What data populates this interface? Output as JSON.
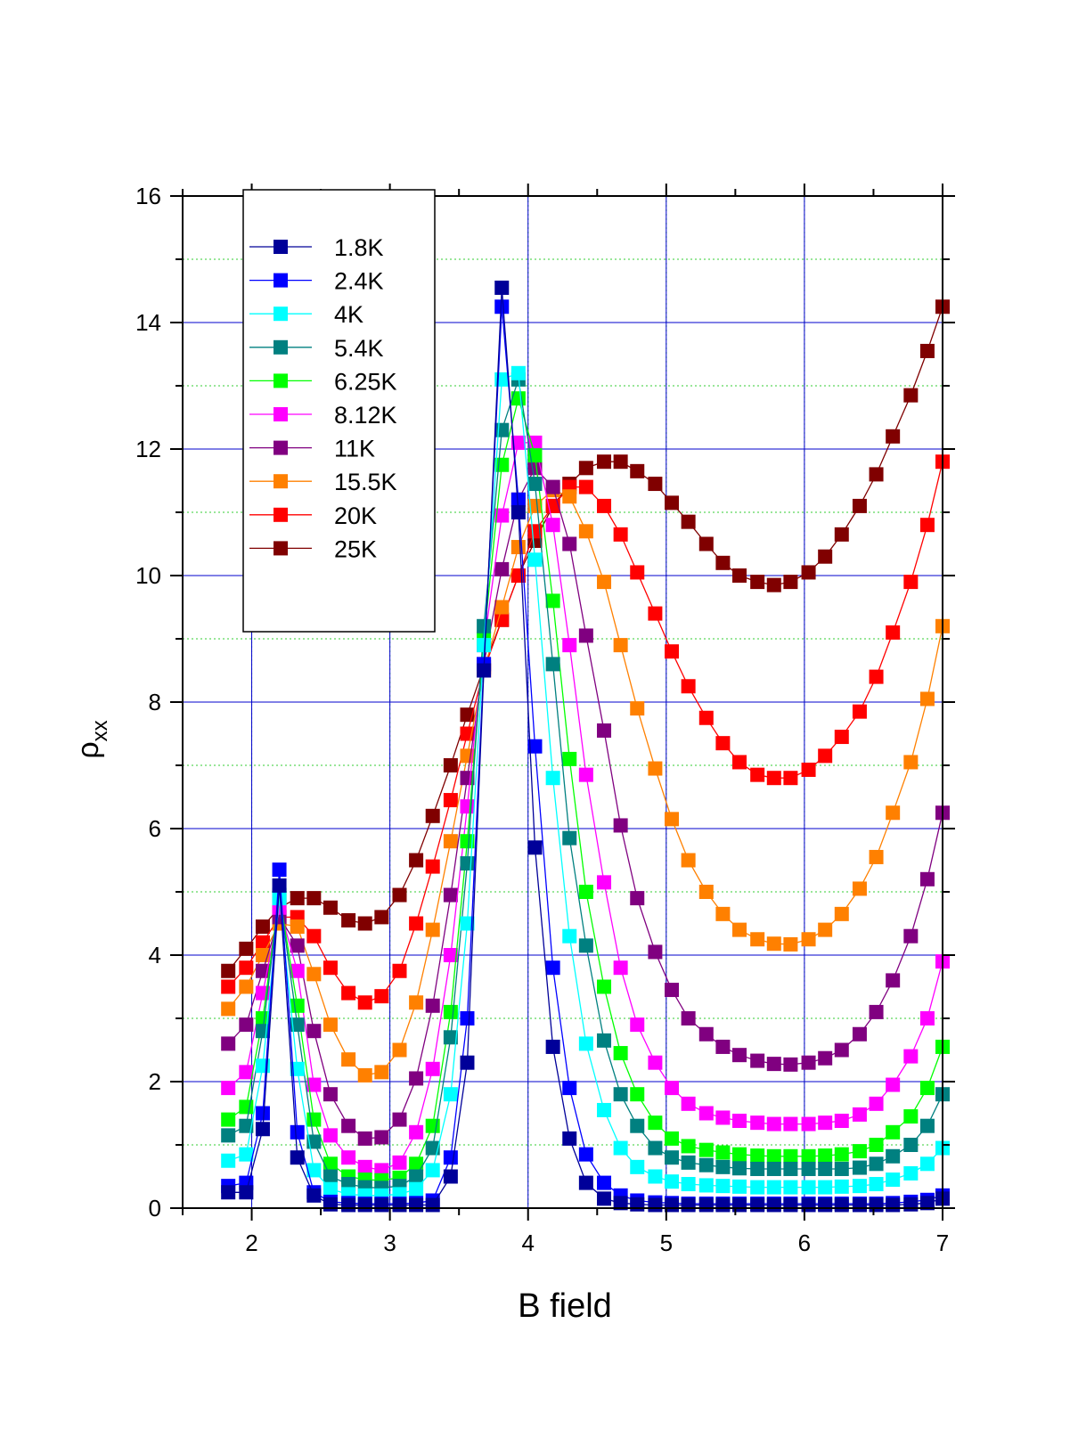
{
  "chart_data": {
    "type": "line",
    "xlabel": "B field",
    "ylabel_base": "ρ",
    "ylabel_sub": "xx",
    "xlim": [
      1.5,
      7
    ],
    "ylim": [
      0,
      16
    ],
    "xticks": [
      2,
      3,
      4,
      5,
      6,
      7
    ],
    "yticks": [
      0,
      2,
      4,
      6,
      8,
      10,
      12,
      14,
      16
    ],
    "grid": true,
    "legend_position": "top-left",
    "colors": {
      "grid_major": "#0000cc",
      "grid_minor": "#33cc33",
      "axis": "#000000"
    },
    "series": [
      {
        "name": "1.8K",
        "color": "#000099",
        "x": [
          1.83,
          1.96,
          2.08,
          2.2,
          2.33,
          2.45,
          2.57,
          2.7,
          2.82,
          2.94,
          3.07,
          3.19,
          3.31,
          3.44,
          3.56,
          3.68,
          3.81,
          3.93,
          4.05,
          4.18,
          4.3,
          4.42,
          4.55,
          4.67,
          4.79,
          4.92,
          5.04,
          5.16,
          5.29,
          5.41,
          5.53,
          5.66,
          5.78,
          5.9,
          6.03,
          6.15,
          6.27,
          6.4,
          6.52,
          6.64,
          6.77,
          6.89,
          7.0
        ],
        "y": [
          0.25,
          0.25,
          1.25,
          5.1,
          0.8,
          0.2,
          0.06,
          0.05,
          0.05,
          0.05,
          0.05,
          0.05,
          0.05,
          0.5,
          2.3,
          8.5,
          14.55,
          11.0,
          5.7,
          2.55,
          1.1,
          0.4,
          0.15,
          0.08,
          0.06,
          0.05,
          0.05,
          0.05,
          0.05,
          0.05,
          0.05,
          0.05,
          0.05,
          0.05,
          0.05,
          0.05,
          0.05,
          0.05,
          0.05,
          0.05,
          0.06,
          0.08,
          0.15
        ]
      },
      {
        "name": "2.4K",
        "color": "#0000ff",
        "x": [
          1.83,
          1.96,
          2.08,
          2.2,
          2.33,
          2.45,
          2.57,
          2.7,
          2.82,
          2.94,
          3.07,
          3.19,
          3.31,
          3.44,
          3.56,
          3.68,
          3.81,
          3.93,
          4.05,
          4.18,
          4.3,
          4.42,
          4.55,
          4.67,
          4.79,
          4.92,
          5.04,
          5.16,
          5.29,
          5.41,
          5.53,
          5.66,
          5.78,
          5.9,
          6.03,
          6.15,
          6.27,
          6.4,
          6.52,
          6.64,
          6.77,
          6.89,
          7.0
        ],
        "y": [
          0.35,
          0.4,
          1.5,
          5.35,
          1.2,
          0.25,
          0.1,
          0.08,
          0.07,
          0.07,
          0.07,
          0.08,
          0.12,
          0.8,
          3.0,
          8.6,
          14.25,
          11.2,
          7.3,
          3.8,
          1.9,
          0.85,
          0.4,
          0.2,
          0.12,
          0.09,
          0.08,
          0.07,
          0.07,
          0.07,
          0.07,
          0.07,
          0.07,
          0.07,
          0.07,
          0.07,
          0.07,
          0.07,
          0.07,
          0.08,
          0.1,
          0.13,
          0.2
        ]
      },
      {
        "name": "4K",
        "color": "#00ffff",
        "x": [
          1.83,
          1.96,
          2.08,
          2.2,
          2.33,
          2.45,
          2.57,
          2.7,
          2.82,
          2.94,
          3.07,
          3.19,
          3.31,
          3.44,
          3.56,
          3.68,
          3.81,
          3.93,
          4.05,
          4.18,
          4.3,
          4.42,
          4.55,
          4.67,
          4.79,
          4.92,
          5.04,
          5.16,
          5.29,
          5.41,
          5.53,
          5.66,
          5.78,
          5.9,
          6.03,
          6.15,
          6.27,
          6.4,
          6.52,
          6.64,
          6.77,
          6.89,
          7.0
        ],
        "y": [
          0.75,
          0.85,
          2.25,
          4.9,
          2.2,
          0.6,
          0.3,
          0.22,
          0.2,
          0.2,
          0.22,
          0.3,
          0.6,
          1.8,
          4.5,
          8.9,
          13.1,
          13.2,
          10.25,
          6.8,
          4.3,
          2.6,
          1.55,
          0.95,
          0.65,
          0.5,
          0.42,
          0.38,
          0.36,
          0.35,
          0.34,
          0.33,
          0.33,
          0.33,
          0.33,
          0.33,
          0.34,
          0.35,
          0.38,
          0.45,
          0.55,
          0.7,
          0.95
        ]
      },
      {
        "name": "5.4K",
        "color": "#008080",
        "x": [
          1.83,
          1.96,
          2.08,
          2.2,
          2.33,
          2.45,
          2.57,
          2.7,
          2.82,
          2.94,
          3.07,
          3.19,
          3.31,
          3.44,
          3.56,
          3.68,
          3.81,
          3.93,
          4.05,
          4.18,
          4.3,
          4.42,
          4.55,
          4.67,
          4.79,
          4.92,
          5.04,
          5.16,
          5.29,
          5.41,
          5.53,
          5.66,
          5.78,
          5.9,
          6.03,
          6.15,
          6.27,
          6.4,
          6.52,
          6.64,
          6.77,
          6.89,
          7.0
        ],
        "y": [
          1.15,
          1.3,
          2.8,
          4.95,
          2.9,
          1.05,
          0.5,
          0.38,
          0.33,
          0.32,
          0.35,
          0.5,
          0.95,
          2.7,
          5.45,
          9.2,
          12.3,
          13.1,
          11.45,
          8.6,
          5.85,
          4.15,
          2.65,
          1.8,
          1.3,
          0.95,
          0.8,
          0.72,
          0.68,
          0.65,
          0.63,
          0.62,
          0.62,
          0.62,
          0.62,
          0.62,
          0.62,
          0.64,
          0.7,
          0.82,
          1.0,
          1.3,
          1.8
        ]
      },
      {
        "name": "6.25K",
        "color": "#00ff00",
        "x": [
          1.83,
          1.96,
          2.08,
          2.2,
          2.33,
          2.45,
          2.57,
          2.7,
          2.82,
          2.94,
          3.07,
          3.19,
          3.31,
          3.44,
          3.56,
          3.68,
          3.81,
          3.93,
          4.05,
          4.18,
          4.3,
          4.42,
          4.55,
          4.67,
          4.79,
          4.92,
          5.04,
          5.16,
          5.29,
          5.41,
          5.53,
          5.66,
          5.78,
          5.9,
          6.03,
          6.15,
          6.27,
          6.4,
          6.52,
          6.64,
          6.77,
          6.89,
          7.0
        ],
        "y": [
          1.4,
          1.6,
          3.0,
          4.95,
          3.2,
          1.4,
          0.7,
          0.5,
          0.45,
          0.44,
          0.48,
          0.7,
          1.3,
          3.1,
          5.8,
          9.0,
          11.75,
          12.8,
          11.9,
          9.6,
          7.1,
          5.0,
          3.5,
          2.45,
          1.8,
          1.35,
          1.1,
          0.98,
          0.92,
          0.88,
          0.85,
          0.83,
          0.82,
          0.82,
          0.82,
          0.83,
          0.85,
          0.9,
          1.0,
          1.2,
          1.45,
          1.9,
          2.55
        ]
      },
      {
        "name": "8.12K",
        "color": "#ff00ff",
        "x": [
          1.83,
          1.96,
          2.08,
          2.2,
          2.33,
          2.45,
          2.57,
          2.7,
          2.82,
          2.94,
          3.07,
          3.19,
          3.31,
          3.44,
          3.56,
          3.68,
          3.81,
          3.93,
          4.05,
          4.18,
          4.3,
          4.42,
          4.55,
          4.67,
          4.79,
          4.92,
          5.04,
          5.16,
          5.29,
          5.41,
          5.53,
          5.66,
          5.78,
          5.9,
          6.03,
          6.15,
          6.27,
          6.4,
          6.52,
          6.64,
          6.77,
          6.89,
          7.0
        ],
        "y": [
          1.9,
          2.15,
          3.4,
          4.75,
          3.75,
          1.95,
          1.15,
          0.8,
          0.65,
          0.6,
          0.72,
          1.2,
          2.2,
          4.0,
          6.35,
          8.9,
          10.95,
          12.1,
          12.1,
          10.8,
          8.9,
          6.85,
          5.15,
          3.8,
          2.9,
          2.3,
          1.9,
          1.65,
          1.5,
          1.43,
          1.38,
          1.35,
          1.33,
          1.33,
          1.33,
          1.35,
          1.38,
          1.48,
          1.65,
          1.95,
          2.4,
          3.0,
          3.9
        ]
      },
      {
        "name": "11K",
        "color": "#800080",
        "x": [
          1.83,
          1.96,
          2.08,
          2.2,
          2.33,
          2.45,
          2.57,
          2.7,
          2.82,
          2.94,
          3.07,
          3.19,
          3.31,
          3.44,
          3.56,
          3.68,
          3.81,
          3.93,
          4.05,
          4.18,
          4.3,
          4.42,
          4.55,
          4.67,
          4.79,
          4.92,
          5.04,
          5.16,
          5.29,
          5.41,
          5.53,
          5.66,
          5.78,
          5.9,
          6.03,
          6.15,
          6.27,
          6.4,
          6.52,
          6.64,
          6.77,
          6.89,
          7.0
        ],
        "y": [
          2.6,
          2.9,
          3.75,
          4.6,
          4.15,
          2.8,
          1.8,
          1.3,
          1.1,
          1.12,
          1.4,
          2.05,
          3.2,
          4.95,
          6.8,
          8.6,
          10.1,
          11.2,
          11.7,
          11.4,
          10.5,
          9.05,
          7.55,
          6.05,
          4.9,
          4.05,
          3.45,
          3.0,
          2.75,
          2.55,
          2.42,
          2.33,
          2.28,
          2.27,
          2.3,
          2.37,
          2.5,
          2.75,
          3.1,
          3.6,
          4.3,
          5.2,
          6.25
        ]
      },
      {
        "name": "15.5K",
        "color": "#ff8000",
        "x": [
          1.83,
          1.96,
          2.08,
          2.2,
          2.33,
          2.45,
          2.57,
          2.7,
          2.82,
          2.94,
          3.07,
          3.19,
          3.31,
          3.44,
          3.56,
          3.68,
          3.81,
          3.93,
          4.05,
          4.18,
          4.3,
          4.42,
          4.55,
          4.67,
          4.79,
          4.92,
          5.04,
          5.16,
          5.29,
          5.41,
          5.53,
          5.66,
          5.78,
          5.9,
          6.03,
          6.15,
          6.27,
          6.4,
          6.52,
          6.64,
          6.77,
          6.89,
          7.0
        ],
        "y": [
          3.15,
          3.5,
          4.0,
          4.5,
          4.45,
          3.7,
          2.9,
          2.35,
          2.1,
          2.15,
          2.5,
          3.25,
          4.4,
          5.8,
          7.15,
          8.5,
          9.5,
          10.45,
          11.1,
          11.35,
          11.25,
          10.7,
          9.9,
          8.9,
          7.9,
          6.95,
          6.15,
          5.5,
          5.0,
          4.65,
          4.4,
          4.25,
          4.18,
          4.17,
          4.25,
          4.4,
          4.65,
          5.05,
          5.55,
          6.25,
          7.05,
          8.05,
          9.2
        ]
      },
      {
        "name": "20K",
        "color": "#ff0000",
        "x": [
          1.83,
          1.96,
          2.08,
          2.2,
          2.33,
          2.45,
          2.57,
          2.7,
          2.82,
          2.94,
          3.07,
          3.19,
          3.31,
          3.44,
          3.56,
          3.68,
          3.81,
          3.93,
          4.05,
          4.18,
          4.3,
          4.42,
          4.55,
          4.67,
          4.79,
          4.92,
          5.04,
          5.16,
          5.29,
          5.41,
          5.53,
          5.66,
          5.78,
          5.9,
          6.03,
          6.15,
          6.27,
          6.4,
          6.52,
          6.64,
          6.77,
          6.89,
          7.0
        ],
        "y": [
          3.5,
          3.8,
          4.2,
          4.6,
          4.6,
          4.3,
          3.8,
          3.4,
          3.25,
          3.35,
          3.75,
          4.5,
          5.4,
          6.45,
          7.5,
          8.5,
          9.3,
          10.0,
          10.7,
          11.1,
          11.4,
          11.4,
          11.1,
          10.65,
          10.05,
          9.4,
          8.8,
          8.25,
          7.75,
          7.35,
          7.05,
          6.85,
          6.8,
          6.8,
          6.93,
          7.15,
          7.45,
          7.85,
          8.4,
          9.1,
          9.9,
          10.8,
          11.8
        ]
      },
      {
        "name": "25K",
        "color": "#800000",
        "x": [
          1.83,
          1.96,
          2.08,
          2.2,
          2.33,
          2.45,
          2.57,
          2.7,
          2.82,
          2.94,
          3.07,
          3.19,
          3.31,
          3.44,
          3.56,
          3.68,
          3.81,
          3.93,
          4.05,
          4.18,
          4.3,
          4.42,
          4.55,
          4.67,
          4.79,
          4.92,
          5.04,
          5.16,
          5.29,
          5.41,
          5.53,
          5.66,
          5.78,
          5.9,
          6.03,
          6.15,
          6.27,
          6.4,
          6.52,
          6.64,
          6.77,
          6.89,
          7.0
        ],
        "y": [
          3.75,
          4.1,
          4.45,
          4.75,
          4.9,
          4.9,
          4.75,
          4.55,
          4.5,
          4.6,
          4.95,
          5.5,
          6.2,
          7.0,
          7.8,
          8.55,
          9.3,
          10.0,
          10.55,
          11.1,
          11.45,
          11.7,
          11.8,
          11.8,
          11.65,
          11.45,
          11.15,
          10.85,
          10.5,
          10.2,
          10.0,
          9.9,
          9.85,
          9.9,
          10.05,
          10.3,
          10.65,
          11.1,
          11.6,
          12.2,
          12.85,
          13.55,
          14.25
        ]
      }
    ]
  }
}
